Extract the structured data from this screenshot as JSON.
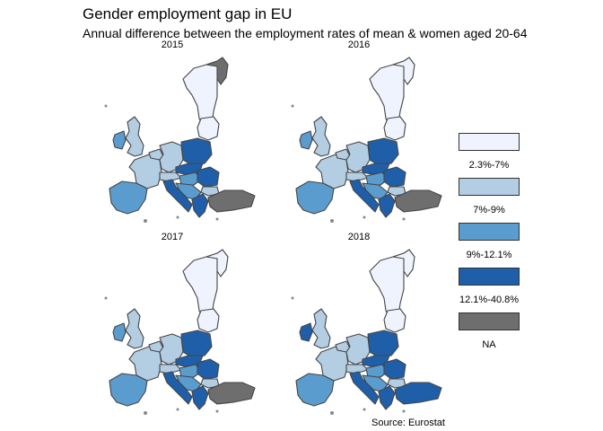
{
  "title": "Gender employment gap in EU",
  "subtitle": "Annual difference between the employment rates of mean & women aged 20-64",
  "source": "Source: Eurostat",
  "colors": {
    "c1": "#eef3fd",
    "c2": "#b3cde3",
    "c3": "#5b9ccf",
    "c4": "#1f5fa9",
    "na": "#6e6e6e",
    "border": "#454545"
  },
  "legend": [
    {
      "label": "2.3%-7%",
      "color": "#eef3fd"
    },
    {
      "label": "7%-9%",
      "color": "#b3cde3"
    },
    {
      "label": "9%-12.1%",
      "color": "#5b9ccf"
    },
    {
      "label": "12.1%-40.8%",
      "color": "#1f5fa9"
    },
    {
      "label": "NA",
      "color": "#6e6e6e"
    }
  ],
  "panels": [
    {
      "year": "2015",
      "classes": {
        "nordic": "c1",
        "norway": "na",
        "britain": "c2",
        "ireland": "c3",
        "iberia": "c3",
        "france": "c2",
        "benelux": "c2",
        "germany": "c2",
        "poland": "c4",
        "baltic": "c1",
        "czsk": "c4",
        "hungary": "c3",
        "romania": "c4",
        "bulgaria": "c2",
        "italy": "c4",
        "balkans": "c3",
        "greece": "c4",
        "turkey": "na",
        "alps": "c2"
      }
    },
    {
      "year": "2016",
      "classes": {
        "nordic": "c1",
        "norway": "c1",
        "britain": "c2",
        "ireland": "c3",
        "iberia": "c3",
        "france": "c2",
        "benelux": "c2",
        "germany": "c2",
        "poland": "c4",
        "baltic": "c1",
        "czsk": "c4",
        "hungary": "c3",
        "romania": "c4",
        "bulgaria": "c2",
        "italy": "c4",
        "balkans": "c3",
        "greece": "c4",
        "turkey": "na",
        "alps": "c2"
      }
    },
    {
      "year": "2017",
      "classes": {
        "nordic": "c1",
        "norway": "c1",
        "britain": "c2",
        "ireland": "c3",
        "iberia": "c3",
        "france": "c2",
        "benelux": "c2",
        "germany": "c2",
        "poland": "c4",
        "baltic": "c1",
        "czsk": "c4",
        "hungary": "c3",
        "romania": "c4",
        "bulgaria": "c2",
        "italy": "c4",
        "balkans": "c3",
        "greece": "c4",
        "turkey": "na",
        "alps": "c2"
      }
    },
    {
      "year": "2018",
      "classes": {
        "nordic": "c1",
        "norway": "c1",
        "britain": "c2",
        "ireland": "c4",
        "iberia": "c3",
        "france": "c2",
        "benelux": "c2",
        "germany": "c2",
        "poland": "c4",
        "baltic": "c1",
        "czsk": "c4",
        "hungary": "c3",
        "romania": "c4",
        "bulgaria": "c2",
        "italy": "c4",
        "balkans": "c3",
        "greece": "c4",
        "turkey": "c4",
        "alps": "c2"
      }
    }
  ]
}
